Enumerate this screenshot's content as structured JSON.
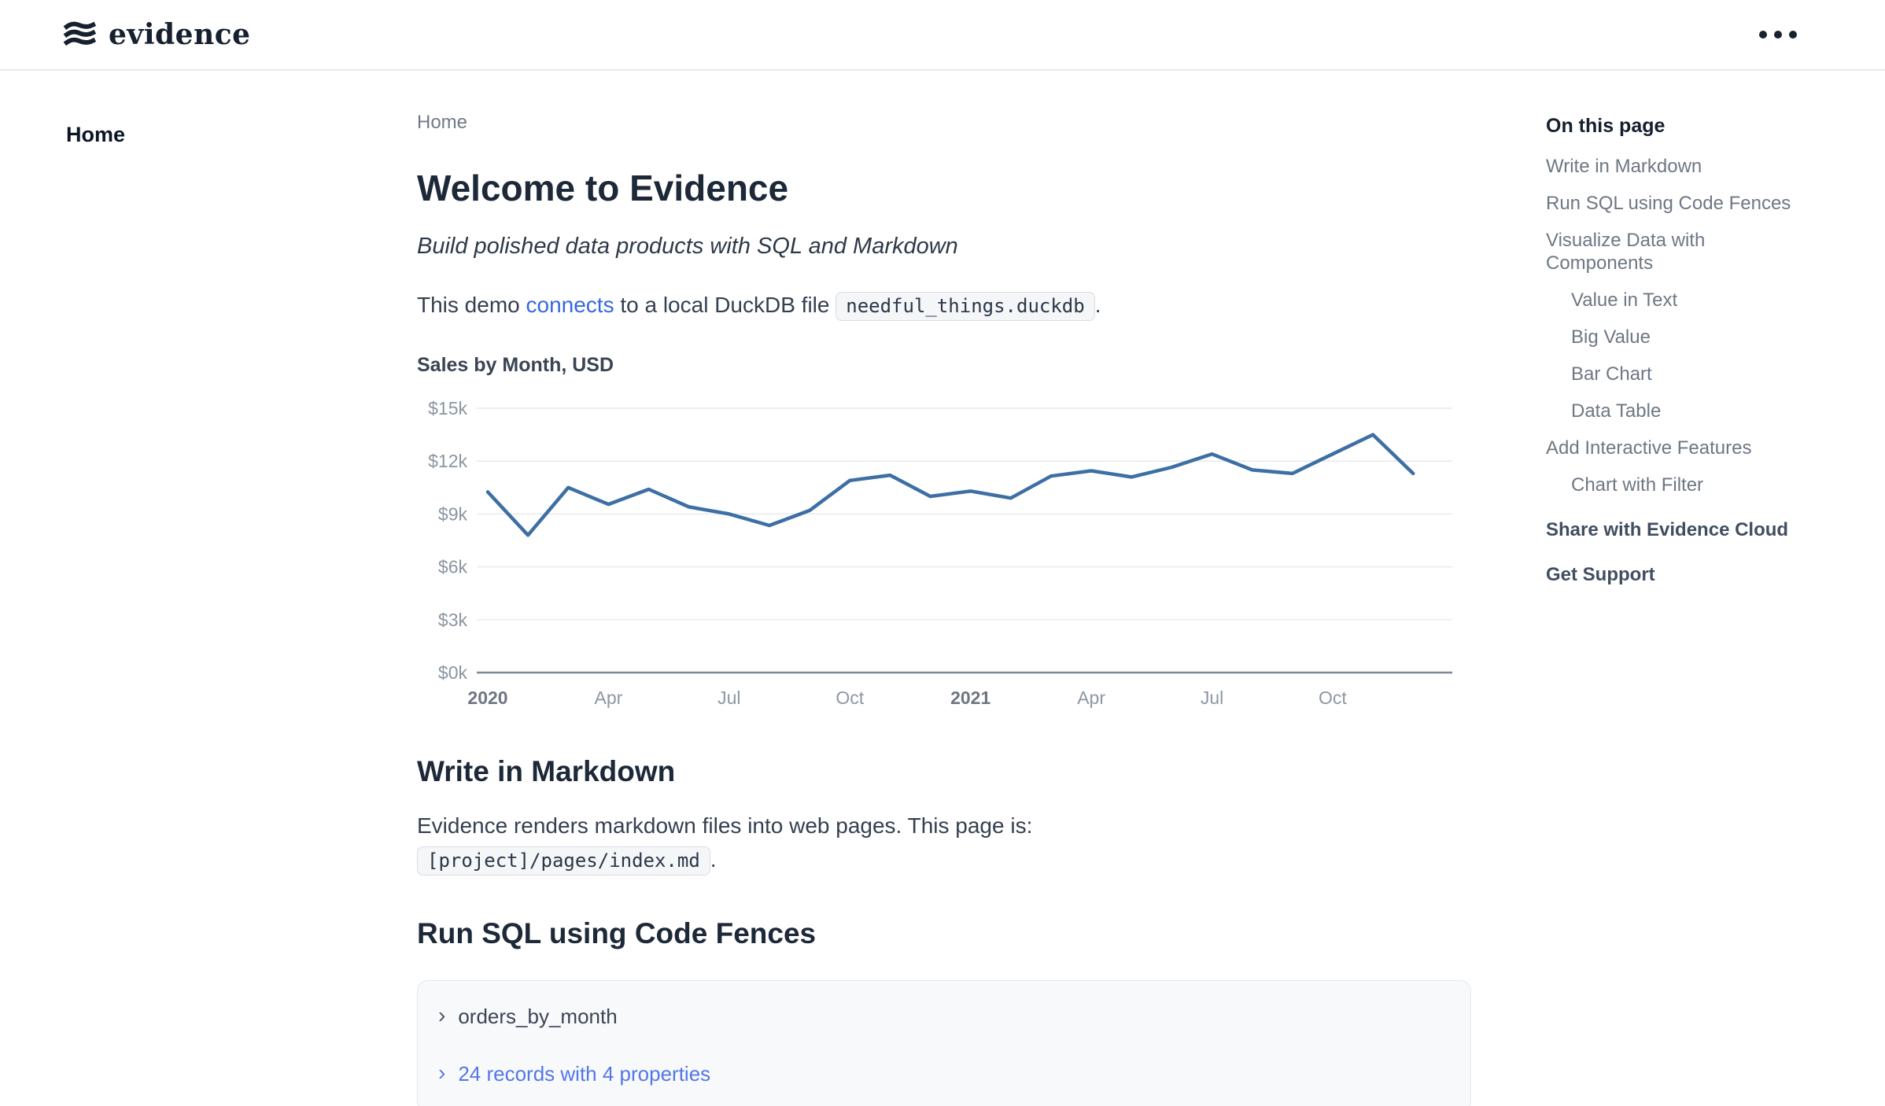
{
  "header": {
    "brand": "evidence",
    "menu_icon": "ellipsis-icon"
  },
  "sidebar": {
    "items": [
      {
        "label": "Home",
        "active": true
      }
    ]
  },
  "breadcrumb": "Home",
  "page": {
    "title": "Welcome to Evidence",
    "subtitle": "Build polished data products with SQL and Markdown",
    "intro": {
      "pre": "This demo ",
      "link": "connects",
      "mid": " to a local DuckDB file ",
      "code": "needful_things.duckdb",
      "post": "."
    }
  },
  "chart_data": {
    "type": "line",
    "title": "Sales by Month, USD",
    "xlabel": "",
    "ylabel": "",
    "ylim": [
      0,
      15000
    ],
    "grid": true,
    "legend": false,
    "line_color": "#3d6fa5",
    "categories": [
      "Jan 2020",
      "Feb 2020",
      "Mar 2020",
      "Apr 2020",
      "May 2020",
      "Jun 2020",
      "Jul 2020",
      "Aug 2020",
      "Sep 2020",
      "Oct 2020",
      "Nov 2020",
      "Dec 2020",
      "Jan 2021",
      "Feb 2021",
      "Mar 2021",
      "Apr 2021",
      "May 2021",
      "Jun 2021",
      "Jul 2021",
      "Aug 2021",
      "Sep 2021",
      "Oct 2021",
      "Nov 2021",
      "Dec 2021"
    ],
    "values": [
      10250,
      7800,
      10500,
      9550,
      10400,
      9400,
      9000,
      8350,
      9200,
      10900,
      11200,
      10000,
      10300,
      9900,
      11150,
      11450,
      11100,
      11650,
      12400,
      11500,
      11300,
      12400,
      13500,
      11300
    ],
    "y_ticks": [
      {
        "v": 15000,
        "label": "$15k"
      },
      {
        "v": 12000,
        "label": "$12k"
      },
      {
        "v": 9000,
        "label": "$9k"
      },
      {
        "v": 6000,
        "label": "$6k"
      },
      {
        "v": 3000,
        "label": "$3k"
      },
      {
        "v": 0,
        "label": "$0k"
      }
    ],
    "x_ticks": [
      {
        "i": 0,
        "label": "2020",
        "bold": true
      },
      {
        "i": 3,
        "label": "Apr",
        "bold": false
      },
      {
        "i": 6,
        "label": "Jul",
        "bold": false
      },
      {
        "i": 9,
        "label": "Oct",
        "bold": false
      },
      {
        "i": 12,
        "label": "2021",
        "bold": true
      },
      {
        "i": 15,
        "label": "Apr",
        "bold": false
      },
      {
        "i": 18,
        "label": "Jul",
        "bold": false
      },
      {
        "i": 21,
        "label": "Oct",
        "bold": false
      }
    ]
  },
  "sections": {
    "markdown": {
      "heading": "Write in Markdown",
      "body": "Evidence renders markdown files into web pages. This page is:",
      "code": "[project]/pages/index.md",
      "post": "."
    },
    "sql": {
      "heading": "Run SQL using Code Fences",
      "query_block": {
        "chevron": "›",
        "query_name": "orders_by_month",
        "result_summary": "24 records with 4 properties"
      }
    }
  },
  "toc": {
    "heading": "On this page",
    "items": [
      {
        "label": "Write in Markdown",
        "indent": false,
        "emphasis": false
      },
      {
        "label": "Run SQL using Code Fences",
        "indent": false,
        "emphasis": false
      },
      {
        "label": "Visualize Data with Components",
        "indent": false,
        "emphasis": false
      },
      {
        "label": "Value in Text",
        "indent": true,
        "emphasis": false
      },
      {
        "label": "Big Value",
        "indent": true,
        "emphasis": false
      },
      {
        "label": "Bar Chart",
        "indent": true,
        "emphasis": false
      },
      {
        "label": "Data Table",
        "indent": true,
        "emphasis": false
      },
      {
        "label": "Add Interactive Features",
        "indent": false,
        "emphasis": false
      },
      {
        "label": "Chart with Filter",
        "indent": true,
        "emphasis": false
      },
      {
        "label": "Share with Evidence Cloud",
        "indent": false,
        "emphasis": true
      },
      {
        "label": "Get Support",
        "indent": false,
        "emphasis": true
      }
    ]
  }
}
